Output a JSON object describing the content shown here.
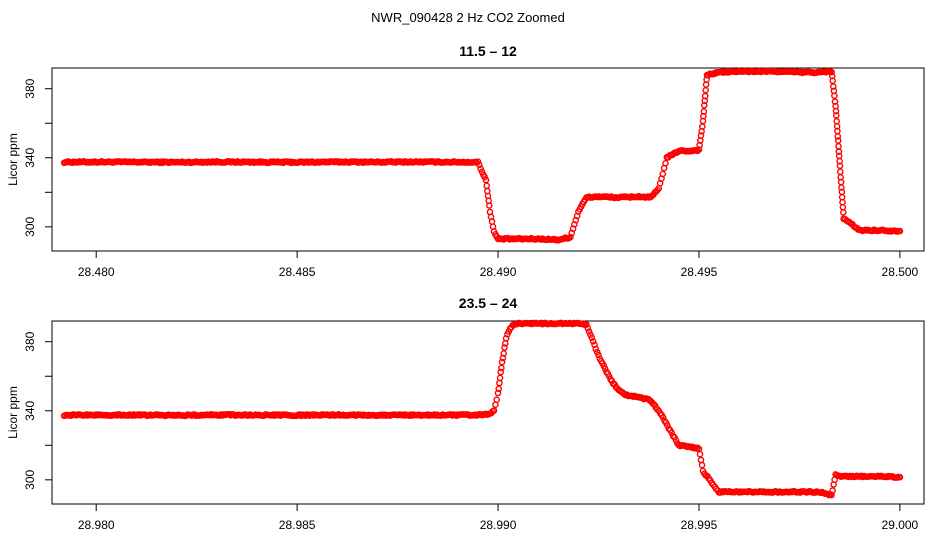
{
  "figure": {
    "title": "NWR_090428  2 Hz CO2 Zoomed",
    "colors": {
      "points": "#ff0000",
      "axis": "#000000",
      "background": "#ffffff"
    },
    "marker": "open-circle"
  },
  "chart_data": [
    {
      "type": "scatter",
      "title": "11.5 – 12",
      "xlabel": "",
      "ylabel": "Licor ppm",
      "xlim": [
        28.4789,
        28.5006
      ],
      "ylim": [
        286,
        392
      ],
      "xticks": [
        28.48,
        28.485,
        28.49,
        28.495,
        28.5
      ],
      "xtick_labels": [
        "28.480",
        "28.485",
        "28.490",
        "28.495",
        "28.500"
      ],
      "yticks": [
        300,
        320,
        340,
        360,
        380
      ],
      "ytick_labels": [
        "300",
        "",
        "340",
        "",
        "380"
      ],
      "grid": false,
      "series": [
        {
          "color": "#ff0000",
          "x": [
            28.4792,
            28.48,
            28.481,
            28.482,
            28.483,
            28.484,
            28.485,
            28.486,
            28.487,
            28.488,
            28.489,
            28.4895,
            28.4897,
            28.4898,
            28.4899,
            28.49,
            28.4905,
            28.491,
            28.4915,
            28.4918,
            28.492,
            28.4922,
            28.4925,
            28.493,
            28.4935,
            28.4938,
            28.494,
            28.4942,
            28.4945,
            28.4948,
            28.495,
            28.4951,
            28.4952,
            28.4955,
            28.496,
            28.4965,
            28.497,
            28.4975,
            28.498,
            28.4983,
            28.4984,
            28.4985,
            28.4986,
            28.499,
            28.4995,
            28.5
          ],
          "y": [
            337.5,
            337.6,
            337.5,
            337.4,
            337.6,
            337.5,
            337.4,
            337.6,
            337.5,
            337.6,
            337.5,
            337.4,
            327,
            309,
            297,
            293,
            293,
            293,
            292.5,
            294,
            309,
            317,
            317.5,
            317,
            317.5,
            317,
            322,
            340,
            344,
            344,
            344.5,
            361,
            388,
            389.5,
            390,
            390,
            390,
            389.5,
            389.5,
            390,
            370,
            338,
            305,
            298,
            298,
            297.5
          ]
        }
      ]
    },
    {
      "type": "scatter",
      "title": "23.5 – 24",
      "xlabel": "",
      "ylabel": "Licor ppm",
      "xlim": [
        28.9789,
        29.0006
      ],
      "ylim": [
        286,
        392
      ],
      "xticks": [
        28.98,
        28.985,
        28.99,
        28.995,
        29.0
      ],
      "xtick_labels": [
        "28.980",
        "28.985",
        "28.990",
        "28.995",
        "29.000"
      ],
      "yticks": [
        300,
        320,
        340,
        360,
        380
      ],
      "ytick_labels": [
        "300",
        "",
        "340",
        "",
        "380"
      ],
      "grid": false,
      "series": [
        {
          "color": "#ff0000",
          "x": [
            28.9792,
            28.98,
            28.981,
            28.982,
            28.983,
            28.984,
            28.985,
            28.986,
            28.987,
            28.988,
            28.989,
            28.9895,
            28.9898,
            28.9899,
            28.99,
            28.9901,
            28.9902,
            28.9903,
            28.9904,
            28.9905,
            28.9907,
            28.991,
            28.9915,
            28.992,
            28.9922,
            28.9925,
            28.9928,
            28.993,
            28.9932,
            28.9935,
            28.9938,
            28.994,
            28.9945,
            28.9948,
            28.995,
            28.9951,
            28.9955,
            28.996,
            28.997,
            28.998,
            28.9983,
            28.9984,
            28.9985,
            28.999,
            28.9995,
            29.0
          ],
          "y": [
            337.5,
            337.6,
            337.5,
            337.4,
            337.6,
            337.5,
            337.4,
            337.6,
            337.5,
            337.5,
            337.5,
            337.6,
            338,
            340,
            350,
            368,
            382,
            388,
            390,
            390.5,
            390.5,
            390.5,
            390.5,
            390.5,
            390,
            372,
            358,
            352,
            349,
            348,
            346,
            340,
            320,
            319,
            318,
            305,
            293,
            293,
            293,
            293,
            291,
            303,
            302,
            302,
            302,
            301.5
          ]
        }
      ]
    }
  ]
}
